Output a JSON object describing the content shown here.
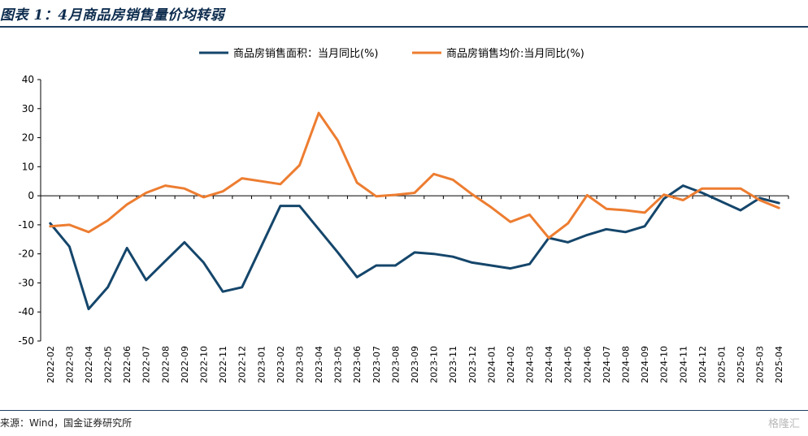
{
  "header": {
    "title": "图表 1：4月商品房销售量价均转弱"
  },
  "footer": {
    "source": "来源：Wind，国金证券研究所",
    "watermark": "格隆汇"
  },
  "colors": {
    "area_series": "#15466b",
    "price_series": "#ed7d31"
  },
  "chart_data": {
    "type": "line",
    "title": "图表 1：4月商品房销售量价均转弱",
    "xlabel": "",
    "ylabel": "",
    "ylim": [
      -50,
      40
    ],
    "yticks": [
      -50,
      -40,
      -30,
      -20,
      -10,
      0,
      10,
      20,
      30,
      40
    ],
    "grid": false,
    "legend_position": "top-center",
    "categories": [
      "2022-02",
      "2022-03",
      "2022-04",
      "2022-05",
      "2022-06",
      "2022-07",
      "2022-08",
      "2022-09",
      "2022-10",
      "2022-11",
      "2022-12",
      "2023-01",
      "2023-02",
      "2023-03",
      "2023-04",
      "2023-05",
      "2023-06",
      "2023-07",
      "2023-08",
      "2023-09",
      "2023-10",
      "2023-11",
      "2023-12",
      "2024-01",
      "2024-02",
      "2024-03",
      "2024-04",
      "2024-05",
      "2024-06",
      "2024-07",
      "2024-08",
      "2024-09",
      "2024-10",
      "2024-11",
      "2024-12",
      "2025-01",
      "2025-02",
      "2025-03",
      "2025-04"
    ],
    "series": [
      {
        "name": "商品房销售面积：当月同比(%)",
        "values": [
          -9.5,
          -17.5,
          -39,
          -31.5,
          -18,
          -29,
          -22.5,
          -16,
          -23,
          -33,
          -31.5,
          -17.5,
          -3.5,
          -3.5,
          -11.5,
          -19.5,
          -28,
          -24,
          -24,
          -19.5,
          -20,
          -21,
          -23,
          -24,
          -25,
          -23.5,
          -14.5,
          -16,
          -13.5,
          -11.5,
          -12.5,
          -10.5,
          -1,
          3.5,
          1,
          -2,
          -5,
          -0.8,
          -2.5
        ]
      },
      {
        "name": "商品房销售均价:当月同比(%)",
        "values": [
          -10.5,
          -10,
          -12.5,
          -8.5,
          -3,
          1,
          3.5,
          2.5,
          -0.5,
          1.5,
          6,
          5,
          4,
          10.5,
          28.5,
          19,
          4.5,
          -0.2,
          0.3,
          1,
          7.5,
          5.5,
          0.5,
          -4,
          -9,
          -6.5,
          -14.5,
          -9.5,
          0.2,
          -4.5,
          -5,
          -5.8,
          0.4,
          -1.5,
          2.5,
          2.5,
          2.5,
          -1.5,
          -4.2
        ]
      }
    ]
  }
}
